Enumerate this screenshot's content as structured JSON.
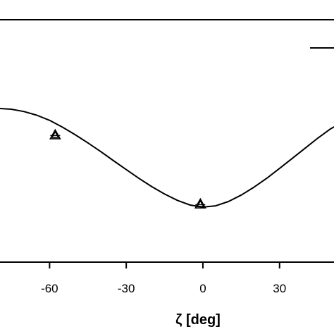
{
  "chart_data": {
    "type": "line",
    "xlabel": "ζ [deg]",
    "xticks": [
      "-60",
      "-30",
      "0",
      "30"
    ],
    "xtick_values": [
      -60,
      -30,
      0,
      30
    ],
    "xlim": [
      -79.4,
      51.3
    ],
    "ylim": [
      0,
      1
    ],
    "grid": false,
    "legend": {
      "position": "top-right",
      "entries": [
        {
          "marker": "line",
          "label": ""
        }
      ]
    },
    "series": [
      {
        "style": "line",
        "x": [
          -80,
          -75,
          -70,
          -65,
          -60,
          -55,
          -50,
          -45,
          -40,
          -35,
          -30,
          -25,
          -20,
          -15,
          -10,
          -5,
          0,
          5,
          10,
          15,
          20,
          25,
          30,
          35,
          40,
          45,
          50,
          52
        ],
        "y": [
          0.761,
          0.755,
          0.738,
          0.711,
          0.673,
          0.623,
          0.567,
          0.506,
          0.442,
          0.375,
          0.309,
          0.244,
          0.183,
          0.128,
          0.082,
          0.047,
          0.032,
          0.041,
          0.073,
          0.121,
          0.179,
          0.245,
          0.318,
          0.392,
          0.467,
          0.542,
          0.611,
          0.632
        ]
      },
      {
        "style": "triangle",
        "x": [
          -57.8,
          -1.0
        ],
        "y": [
          0.566,
          0.055
        ]
      }
    ]
  }
}
